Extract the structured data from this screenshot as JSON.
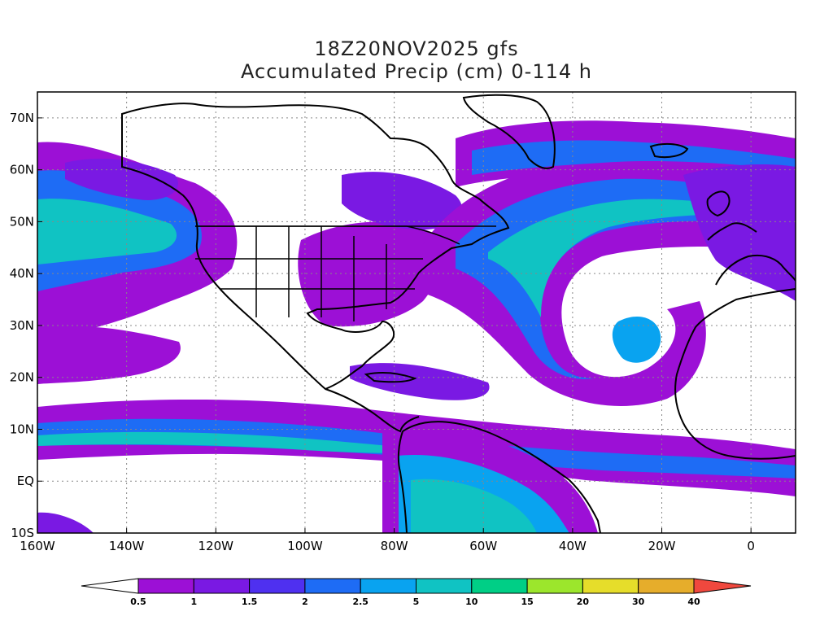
{
  "title": "18Z20NOV2025 gfs",
  "subtitle": "Accumulated Precip (cm) 0-114 h",
  "map": {
    "lon_min": -160,
    "lon_max": 10,
    "lat_min": -10,
    "lat_max": 75,
    "lon_ticks": [
      {
        "value": -160,
        "label": "160W"
      },
      {
        "value": -140,
        "label": "140W"
      },
      {
        "value": -120,
        "label": "120W"
      },
      {
        "value": -100,
        "label": "100W"
      },
      {
        "value": -80,
        "label": "80W"
      },
      {
        "value": -60,
        "label": "60W"
      },
      {
        "value": -40,
        "label": "40W"
      },
      {
        "value": -20,
        "label": "20W"
      },
      {
        "value": 0,
        "label": "0"
      }
    ],
    "lat_ticks": [
      {
        "value": 70,
        "label": "70N"
      },
      {
        "value": 60,
        "label": "60N"
      },
      {
        "value": 50,
        "label": "50N"
      },
      {
        "value": 40,
        "label": "40N"
      },
      {
        "value": 30,
        "label": "30N"
      },
      {
        "value": 20,
        "label": "20N"
      },
      {
        "value": 10,
        "label": "10N"
      },
      {
        "value": 0,
        "label": "EQ"
      },
      {
        "value": -10,
        "label": "10S"
      }
    ],
    "grid": true
  },
  "colorbar": {
    "levels": [
      "0.5",
      "1",
      "1.5",
      "2",
      "2.5",
      "5",
      "10",
      "15",
      "20",
      "30",
      "40"
    ],
    "colors": [
      "#9c10d6",
      "#7a19e3",
      "#4f30f0",
      "#1e6cf5",
      "#09a3f0",
      "#10c3c3",
      "#00cf86",
      "#9ce62c",
      "#e6dd2a",
      "#e6ad2b",
      "#f07a2b",
      "#f0483e"
    ]
  },
  "precip_colors": {
    "p1": "#9c10d6",
    "p2": "#7a19e3",
    "p3": "#4f30f0",
    "p4": "#1e6cf5",
    "p5": "#09a3f0",
    "p6": "#10c3c3",
    "p7": "#00cf86",
    "p8": "#9ce62c"
  }
}
